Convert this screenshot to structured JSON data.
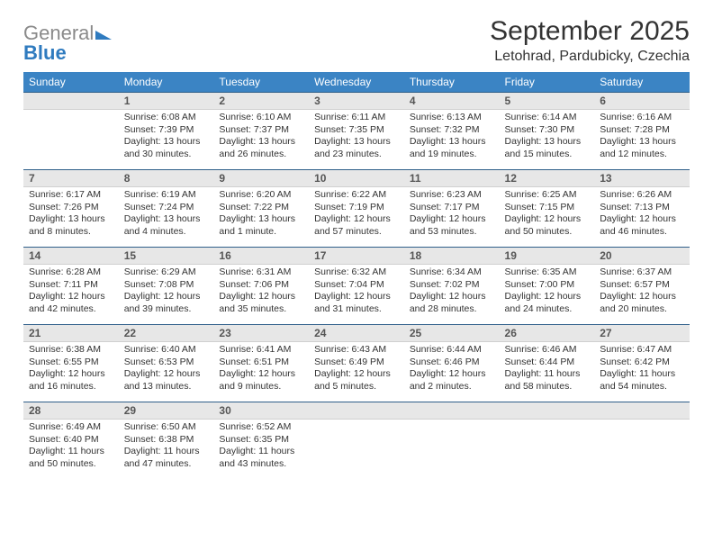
{
  "logo": {
    "word1": "General",
    "word2": "Blue"
  },
  "title": "September 2025",
  "subtitle": "Letohrad, Pardubicky, Czechia",
  "day_headers": [
    "Sunday",
    "Monday",
    "Tuesday",
    "Wednesday",
    "Thursday",
    "Friday",
    "Saturday"
  ],
  "header_bg": "#3b84c4",
  "header_fg": "#ffffff",
  "daynum_bg": "#e7e7e7",
  "row_border": "#2f5f8a",
  "weeks": [
    [
      null,
      {
        "n": "1",
        "sr": "6:08 AM",
        "ss": "7:39 PM",
        "dl": "13 hours and 30 minutes."
      },
      {
        "n": "2",
        "sr": "6:10 AM",
        "ss": "7:37 PM",
        "dl": "13 hours and 26 minutes."
      },
      {
        "n": "3",
        "sr": "6:11 AM",
        "ss": "7:35 PM",
        "dl": "13 hours and 23 minutes."
      },
      {
        "n": "4",
        "sr": "6:13 AM",
        "ss": "7:32 PM",
        "dl": "13 hours and 19 minutes."
      },
      {
        "n": "5",
        "sr": "6:14 AM",
        "ss": "7:30 PM",
        "dl": "13 hours and 15 minutes."
      },
      {
        "n": "6",
        "sr": "6:16 AM",
        "ss": "7:28 PM",
        "dl": "13 hours and 12 minutes."
      }
    ],
    [
      {
        "n": "7",
        "sr": "6:17 AM",
        "ss": "7:26 PM",
        "dl": "13 hours and 8 minutes."
      },
      {
        "n": "8",
        "sr": "6:19 AM",
        "ss": "7:24 PM",
        "dl": "13 hours and 4 minutes."
      },
      {
        "n": "9",
        "sr": "6:20 AM",
        "ss": "7:22 PM",
        "dl": "13 hours and 1 minute."
      },
      {
        "n": "10",
        "sr": "6:22 AM",
        "ss": "7:19 PM",
        "dl": "12 hours and 57 minutes."
      },
      {
        "n": "11",
        "sr": "6:23 AM",
        "ss": "7:17 PM",
        "dl": "12 hours and 53 minutes."
      },
      {
        "n": "12",
        "sr": "6:25 AM",
        "ss": "7:15 PM",
        "dl": "12 hours and 50 minutes."
      },
      {
        "n": "13",
        "sr": "6:26 AM",
        "ss": "7:13 PM",
        "dl": "12 hours and 46 minutes."
      }
    ],
    [
      {
        "n": "14",
        "sr": "6:28 AM",
        "ss": "7:11 PM",
        "dl": "12 hours and 42 minutes."
      },
      {
        "n": "15",
        "sr": "6:29 AM",
        "ss": "7:08 PM",
        "dl": "12 hours and 39 minutes."
      },
      {
        "n": "16",
        "sr": "6:31 AM",
        "ss": "7:06 PM",
        "dl": "12 hours and 35 minutes."
      },
      {
        "n": "17",
        "sr": "6:32 AM",
        "ss": "7:04 PM",
        "dl": "12 hours and 31 minutes."
      },
      {
        "n": "18",
        "sr": "6:34 AM",
        "ss": "7:02 PM",
        "dl": "12 hours and 28 minutes."
      },
      {
        "n": "19",
        "sr": "6:35 AM",
        "ss": "7:00 PM",
        "dl": "12 hours and 24 minutes."
      },
      {
        "n": "20",
        "sr": "6:37 AM",
        "ss": "6:57 PM",
        "dl": "12 hours and 20 minutes."
      }
    ],
    [
      {
        "n": "21",
        "sr": "6:38 AM",
        "ss": "6:55 PM",
        "dl": "12 hours and 16 minutes."
      },
      {
        "n": "22",
        "sr": "6:40 AM",
        "ss": "6:53 PM",
        "dl": "12 hours and 13 minutes."
      },
      {
        "n": "23",
        "sr": "6:41 AM",
        "ss": "6:51 PM",
        "dl": "12 hours and 9 minutes."
      },
      {
        "n": "24",
        "sr": "6:43 AM",
        "ss": "6:49 PM",
        "dl": "12 hours and 5 minutes."
      },
      {
        "n": "25",
        "sr": "6:44 AM",
        "ss": "6:46 PM",
        "dl": "12 hours and 2 minutes."
      },
      {
        "n": "26",
        "sr": "6:46 AM",
        "ss": "6:44 PM",
        "dl": "11 hours and 58 minutes."
      },
      {
        "n": "27",
        "sr": "6:47 AM",
        "ss": "6:42 PM",
        "dl": "11 hours and 54 minutes."
      }
    ],
    [
      {
        "n": "28",
        "sr": "6:49 AM",
        "ss": "6:40 PM",
        "dl": "11 hours and 50 minutes."
      },
      {
        "n": "29",
        "sr": "6:50 AM",
        "ss": "6:38 PM",
        "dl": "11 hours and 47 minutes."
      },
      {
        "n": "30",
        "sr": "6:52 AM",
        "ss": "6:35 PM",
        "dl": "11 hours and 43 minutes."
      },
      null,
      null,
      null,
      null
    ]
  ],
  "labels": {
    "sunrise": "Sunrise:",
    "sunset": "Sunset:",
    "daylight": "Daylight:"
  }
}
